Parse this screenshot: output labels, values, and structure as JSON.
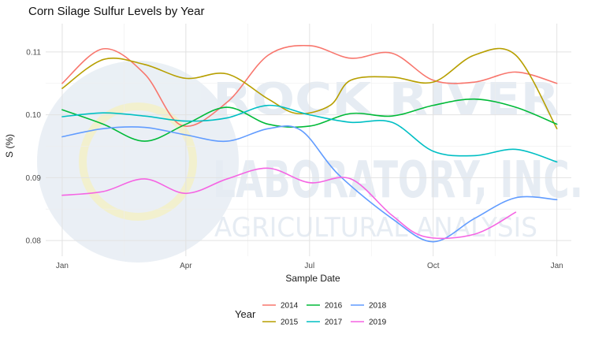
{
  "chart_data": {
    "type": "line",
    "title": "Corn Silage Sulfur Levels by Year",
    "xlabel": "Sample Date",
    "ylabel": "S (%)",
    "ylim": [
      0.0775,
      0.1145
    ],
    "xlim": [
      -0.4,
      12.35
    ],
    "x_ticks": [
      {
        "label": "Jan",
        "value": 0
      },
      {
        "label": "Apr",
        "value": 3
      },
      {
        "label": "Jul",
        "value": 6
      },
      {
        "label": "Oct",
        "value": 9
      },
      {
        "label": "Jan",
        "value": 12
      }
    ],
    "y_ticks": [
      {
        "label": "0.08",
        "value": 0.08
      },
      {
        "label": "0.09",
        "value": 0.09
      },
      {
        "label": "0.10",
        "value": 0.1
      },
      {
        "label": "0.11",
        "value": 0.11
      }
    ],
    "grid": true,
    "legend": {
      "title": "Year",
      "position": "bottom"
    },
    "series": [
      {
        "name": "2014",
        "color": "#F8766D",
        "x": [
          0,
          1,
          2,
          2.9,
          4,
          5,
          6,
          7,
          8,
          9,
          10,
          11,
          12
        ],
        "y": [
          0.105,
          0.1105,
          0.1065,
          0.0983,
          0.102,
          0.1095,
          0.111,
          0.109,
          0.1098,
          0.1055,
          0.1052,
          0.1068,
          0.105
        ]
      },
      {
        "name": "2015",
        "color": "#B79F00",
        "x": [
          0,
          1,
          2,
          3,
          4,
          5,
          5.7,
          6.5,
          7,
          8,
          9,
          10,
          11,
          12
        ],
        "y": [
          0.1042,
          0.1088,
          0.108,
          0.1058,
          0.1065,
          0.1025,
          0.1002,
          0.1015,
          0.1055,
          0.106,
          0.1052,
          0.1095,
          0.1095,
          0.0978
        ]
      },
      {
        "name": "2016",
        "color": "#00BA38",
        "x": [
          0,
          1,
          2,
          3,
          4,
          5,
          6,
          7,
          8,
          9,
          10,
          11,
          12
        ],
        "y": [
          0.1008,
          0.0985,
          0.0958,
          0.0985,
          0.1012,
          0.0985,
          0.0982,
          0.1002,
          0.0998,
          0.1015,
          0.1025,
          0.1012,
          0.0985
        ]
      },
      {
        "name": "2017",
        "color": "#00BFC4",
        "x": [
          0,
          1,
          2,
          3,
          4,
          5,
          6,
          7,
          8,
          9,
          10,
          11,
          12
        ],
        "y": [
          0.0997,
          0.1003,
          0.0998,
          0.099,
          0.0995,
          0.1015,
          0.1,
          0.0988,
          0.0988,
          0.0942,
          0.0935,
          0.0945,
          0.0925
        ]
      },
      {
        "name": "2018",
        "color": "#619CFF",
        "x": [
          0,
          1,
          2,
          3,
          4,
          5,
          5.8,
          6.7,
          8,
          9,
          10,
          11,
          12
        ],
        "y": [
          0.0965,
          0.0978,
          0.098,
          0.0968,
          0.0958,
          0.0978,
          0.0975,
          0.0905,
          0.0835,
          0.0798,
          0.0835,
          0.0868,
          0.0865
        ]
      },
      {
        "name": "2019",
        "color": "#F564E3",
        "x": [
          0,
          1,
          2,
          3,
          4,
          5,
          6,
          7,
          8,
          8.8,
          10,
          11
        ],
        "y": [
          0.0872,
          0.0878,
          0.0898,
          0.0875,
          0.0898,
          0.0915,
          0.0892,
          0.0898,
          0.084,
          0.0806,
          0.081,
          0.0845
        ]
      }
    ]
  },
  "watermark": {
    "line1": "ROCK RIVER",
    "line2": "LABORATORY, INC.",
    "line3": "AGRICULTURAL ANALYSIS",
    "color": "#dde6ee"
  }
}
